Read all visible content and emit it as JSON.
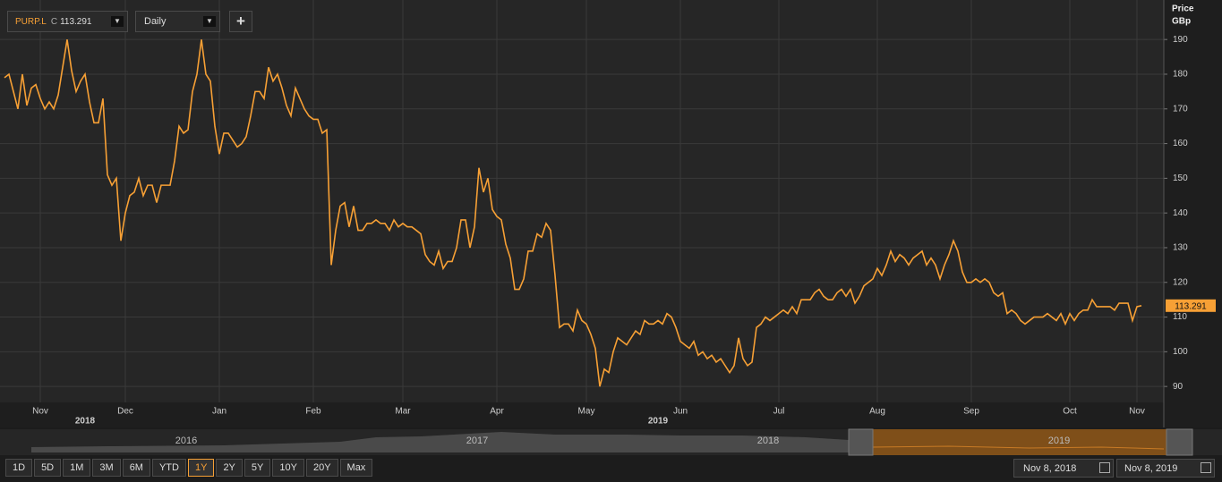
{
  "chart_data": {
    "type": "line",
    "symbol": "PURP.L",
    "close_flag": "C",
    "interval": "Daily",
    "add_button": "+",
    "ylabel": "Price",
    "yunit": "GBp",
    "ylim": [
      85.4,
      200.1
    ],
    "yticks": [
      90,
      100,
      110,
      120,
      130,
      140,
      150,
      160,
      170,
      180,
      190
    ],
    "grid": true,
    "categories": [
      null,
      null,
      null,
      null,
      null,
      null,
      null,
      null,
      "Nov",
      null,
      null,
      null,
      null,
      null,
      null,
      null,
      null,
      null,
      null,
      null,
      null,
      null,
      null,
      null,
      null,
      null,
      null,
      "Dec",
      null,
      null,
      null,
      null,
      null,
      null,
      null,
      null,
      null,
      null,
      null,
      null,
      null,
      null,
      null,
      null,
      null,
      null,
      null,
      null,
      "Jan",
      null,
      null,
      null,
      null,
      null,
      null,
      null,
      null,
      null,
      null,
      null,
      null,
      null,
      null,
      null,
      null,
      null,
      null,
      null,
      null,
      "Feb",
      null,
      null,
      null,
      null,
      null,
      null,
      null,
      null,
      null,
      null,
      null,
      null,
      null,
      null,
      null,
      null,
      null,
      null,
      null,
      "Mar",
      null,
      null,
      null,
      null,
      null,
      null,
      null,
      null,
      null,
      null,
      null,
      null,
      null,
      null,
      null,
      null,
      null,
      null,
      null,
      null,
      "Apr",
      null,
      null,
      null,
      null,
      null,
      null,
      null,
      null,
      null,
      null,
      null,
      null,
      null,
      null,
      null,
      null,
      null,
      null,
      null,
      "May",
      null,
      null,
      null,
      null,
      null,
      null,
      null,
      null,
      null,
      null,
      null,
      null,
      null,
      null,
      null,
      null,
      null,
      null,
      null,
      null,
      "Jun",
      null,
      null,
      null,
      null,
      null,
      null,
      null,
      null,
      null,
      null,
      null,
      null,
      null,
      null,
      null,
      null,
      null,
      null,
      null,
      null,
      null,
      "Jul",
      null,
      null,
      null,
      null,
      null,
      null,
      null,
      null,
      null,
      null,
      null,
      null,
      null,
      null,
      null,
      null,
      null,
      null,
      null,
      null,
      null,
      "Aug",
      null,
      null,
      null,
      null,
      null,
      null,
      null,
      null,
      null,
      null,
      null,
      null,
      null,
      null,
      null,
      null,
      null,
      null,
      null,
      null,
      "Sep",
      null,
      null,
      null,
      null,
      null,
      null,
      null,
      null,
      null,
      null,
      null,
      null,
      null,
      null,
      null,
      null,
      null,
      null,
      null,
      null,
      null,
      "Oct",
      null,
      null,
      null,
      null,
      null,
      null,
      null,
      null,
      null,
      null,
      null,
      null,
      null,
      null,
      "Nov",
      null
    ],
    "x_years": [
      null,
      null,
      null,
      null,
      null,
      null,
      null,
      null,
      null,
      null,
      null,
      null,
      null,
      null,
      null,
      null,
      null,
      null,
      "2018",
      null,
      null,
      null,
      null,
      null,
      null,
      null,
      null,
      null,
      null,
      null,
      null,
      null,
      null,
      null,
      null,
      null,
      null,
      null,
      null,
      null,
      null,
      null,
      null,
      null,
      null,
      null,
      null,
      null,
      null,
      null,
      null,
      null,
      null,
      null,
      null,
      null,
      null,
      null,
      null,
      null,
      null,
      null,
      null,
      null,
      null,
      null,
      null,
      null,
      null,
      null,
      null,
      null,
      null,
      null,
      null,
      null,
      null,
      null,
      null,
      null,
      null,
      null,
      null,
      null,
      null,
      null,
      null,
      null,
      null,
      null,
      null,
      null,
      null,
      null,
      null,
      null,
      null,
      null,
      null,
      null,
      null,
      null,
      null,
      null,
      null,
      null,
      null,
      null,
      null,
      null,
      null,
      null,
      null,
      null,
      null,
      null,
      null,
      null,
      null,
      null,
      null,
      null,
      null,
      null,
      null,
      null,
      null,
      null,
      null,
      null,
      null,
      null,
      null,
      null,
      null,
      null,
      null,
      null,
      null,
      null,
      null,
      null,
      null,
      null,
      null,
      null,
      "2019",
      null,
      null,
      null,
      null,
      null,
      null,
      null,
      null,
      null,
      null,
      null,
      null,
      null,
      null,
      null,
      null,
      null,
      null,
      null,
      null,
      null,
      null,
      null,
      null,
      null,
      null,
      null,
      null,
      null,
      null,
      null,
      null,
      null,
      null,
      null,
      null,
      null,
      null,
      null,
      null,
      null,
      null,
      null,
      null,
      null,
      null,
      null,
      null,
      null,
      null,
      null,
      null,
      null,
      null,
      null,
      null,
      null,
      null,
      null,
      null,
      null,
      null,
      null,
      null,
      null,
      null,
      null,
      null,
      null,
      null,
      null,
      null,
      null,
      null,
      null,
      null,
      null,
      null,
      null,
      null,
      null,
      null,
      null,
      null,
      null,
      null,
      null,
      null,
      null,
      null,
      null,
      null,
      null,
      null,
      null,
      null,
      null,
      null,
      null,
      null,
      null,
      null,
      null,
      null,
      null,
      null,
      null,
      null
    ],
    "series": [
      {
        "name": "PURP.L",
        "color": "#f7a035",
        "values": [
          179,
          180,
          175,
          170,
          180,
          171,
          176,
          177,
          173,
          170,
          172,
          170,
          174,
          182,
          190,
          181,
          175,
          178,
          180,
          172,
          166,
          166,
          173,
          151,
          148,
          150,
          132,
          140,
          145,
          146,
          150,
          145,
          148,
          148,
          143,
          148,
          148,
          148,
          155,
          165,
          163,
          164,
          175,
          180,
          190,
          180,
          178,
          165,
          157,
          163,
          163,
          161,
          159,
          160,
          162,
          168,
          175,
          175,
          173,
          182,
          178,
          180,
          176,
          171,
          168,
          176,
          173,
          170,
          168,
          167,
          167,
          163,
          164,
          125,
          135,
          142,
          143,
          136,
          142,
          135,
          135,
          137,
          137,
          138,
          137,
          137,
          135,
          138,
          136,
          137,
          136,
          136,
          135,
          134,
          128,
          126,
          125,
          129,
          124,
          126,
          126,
          130,
          138,
          138,
          130,
          136,
          153,
          146,
          150,
          141,
          139,
          138,
          131,
          127,
          118,
          118,
          121,
          129,
          129,
          134,
          133,
          137,
          135,
          122,
          107,
          108,
          108,
          106,
          112,
          109,
          108,
          105,
          101,
          90,
          95,
          94,
          100,
          104,
          103,
          102,
          104,
          106,
          105,
          109,
          108,
          108,
          109,
          108,
          111,
          110,
          107,
          103,
          102,
          101,
          103,
          99,
          100,
          98,
          99,
          97,
          98,
          96,
          94,
          96,
          104,
          98,
          96,
          97,
          107,
          108,
          110,
          109,
          110,
          111,
          112,
          111,
          113,
          111,
          115,
          115,
          115,
          117,
          118,
          116,
          115,
          115,
          117,
          118,
          116,
          118,
          114,
          116,
          119,
          120,
          121,
          124,
          122,
          125,
          129,
          126,
          128,
          127,
          125,
          127,
          128,
          129,
          125,
          127,
          125,
          121,
          125,
          128,
          132,
          129,
          123,
          120,
          120,
          121,
          120,
          121,
          120,
          117,
          116,
          117,
          111,
          112,
          111,
          109,
          108,
          109,
          110,
          110,
          110,
          111,
          110,
          109,
          111,
          108,
          111,
          109,
          111,
          112,
          112,
          115,
          113,
          113,
          113,
          113,
          112,
          114,
          114,
          114,
          109,
          113,
          113.291
        ]
      }
    ],
    "navigator_years": [
      "2016",
      "2017",
      "2018",
      "2019"
    ],
    "ranges": [
      "1D",
      "5D",
      "1M",
      "3M",
      "6M",
      "YTD",
      "1Y",
      "2Y",
      "5Y",
      "10Y",
      "20Y",
      "Max"
    ],
    "selected_range": "1Y",
    "start_date": "Nov 8, 2018",
    "end_date": "Nov 8, 2019"
  }
}
